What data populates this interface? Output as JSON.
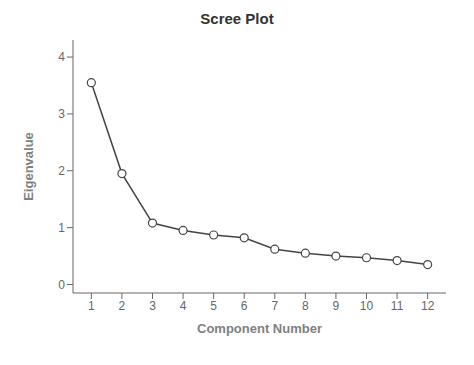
{
  "chart_data": {
    "type": "line",
    "title": "Scree Plot",
    "x": [
      1,
      2,
      3,
      4,
      5,
      6,
      7,
      8,
      9,
      10,
      11,
      12
    ],
    "values": [
      3.55,
      1.95,
      1.08,
      0.95,
      0.87,
      0.82,
      0.62,
      0.55,
      0.5,
      0.47,
      0.42,
      0.35
    ],
    "xlabel": "Component Number",
    "ylabel": "Eigenvalue",
    "xlim": [
      0.4,
      12.6
    ],
    "ylim": [
      -0.15,
      4.3
    ],
    "xticks": [
      1,
      2,
      3,
      4,
      5,
      6,
      7,
      8,
      9,
      10,
      11,
      12
    ],
    "yticks": [
      0,
      1,
      2,
      3,
      4
    ],
    "color": "#444444",
    "marker": "circle",
    "grid": false
  }
}
